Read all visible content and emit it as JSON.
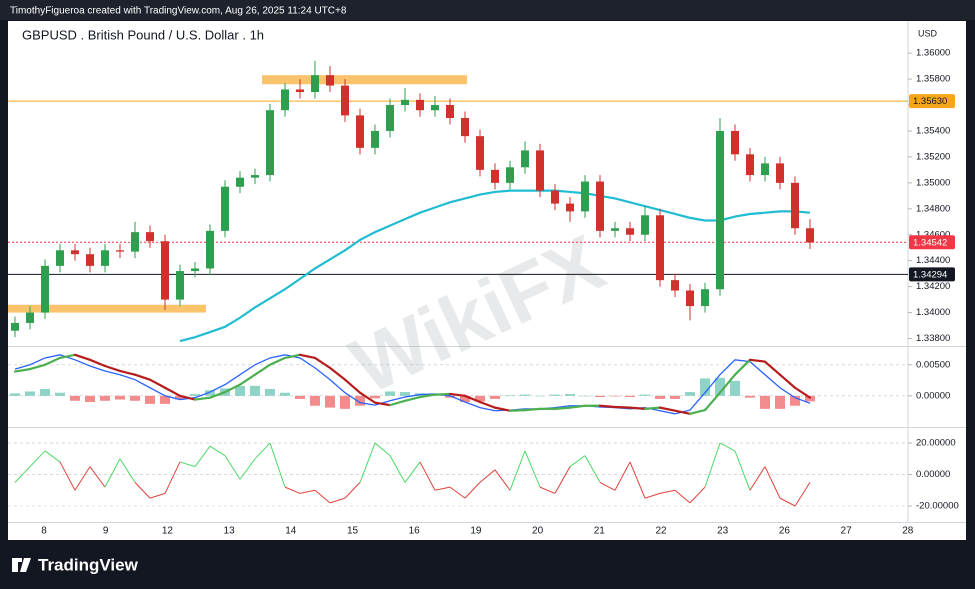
{
  "header": "TimothyFigueroa created with TradingView.com, Aug 26, 2025 11:24 UTC+8",
  "brand": "TradingView",
  "watermark": "WikiFX",
  "chart_data": [
    {
      "type": "candlestick",
      "title": "GBPUSD . British Pound / U.S. Dollar . 1h",
      "currency": "USD",
      "up_color": "#2e9e4f",
      "down_color": "#d0312d",
      "open": [
        1.3386,
        1.3392,
        1.34,
        1.3436,
        1.3448,
        1.3445,
        1.3436,
        1.3448,
        1.3447,
        1.3462,
        1.3455,
        1.341,
        1.3432,
        1.3434,
        1.3463,
        1.3497,
        1.3504,
        1.3506,
        1.3556,
        1.3572,
        1.357,
        1.3583,
        1.3575,
        1.3552,
        1.3527,
        1.354,
        1.356,
        1.3564,
        1.3556,
        1.356,
        1.355,
        1.3536,
        1.351,
        1.35,
        1.3512,
        1.3525,
        1.3494,
        1.3484,
        1.3478,
        1.3501,
        1.3463,
        1.3465,
        1.346,
        1.3475,
        1.3425,
        1.3417,
        1.3405,
        1.3418,
        1.354,
        1.3522,
        1.3506,
        1.3515,
        1.35,
        1.3465
      ],
      "high": [
        1.3397,
        1.3405,
        1.3441,
        1.3453,
        1.3453,
        1.345,
        1.3453,
        1.3453,
        1.347,
        1.3467,
        1.346,
        1.3437,
        1.3439,
        1.3468,
        1.3502,
        1.3509,
        1.3511,
        1.3561,
        1.3577,
        1.358,
        1.3594,
        1.359,
        1.358,
        1.3557,
        1.3545,
        1.3565,
        1.3573,
        1.3569,
        1.3567,
        1.3565,
        1.3555,
        1.3541,
        1.3515,
        1.3517,
        1.3532,
        1.353,
        1.3499,
        1.3489,
        1.3506,
        1.3506,
        1.347,
        1.347,
        1.3482,
        1.348,
        1.343,
        1.3422,
        1.3423,
        1.355,
        1.3545,
        1.3527,
        1.352,
        1.352,
        1.3505,
        1.3472
      ],
      "low": [
        1.3381,
        1.3387,
        1.3395,
        1.3431,
        1.344,
        1.3431,
        1.3431,
        1.3442,
        1.3442,
        1.345,
        1.3402,
        1.3405,
        1.3427,
        1.3429,
        1.3458,
        1.3492,
        1.3499,
        1.3501,
        1.3551,
        1.3565,
        1.3565,
        1.357,
        1.3547,
        1.3522,
        1.3522,
        1.3535,
        1.3555,
        1.3551,
        1.3551,
        1.3545,
        1.3531,
        1.3505,
        1.3495,
        1.3495,
        1.3507,
        1.3489,
        1.3479,
        1.347,
        1.3473,
        1.3458,
        1.3458,
        1.3455,
        1.3455,
        1.342,
        1.3412,
        1.3394,
        1.34,
        1.3413,
        1.3517,
        1.3501,
        1.3501,
        1.3495,
        1.346,
        1.3449
      ],
      "close": [
        1.3392,
        1.34,
        1.3436,
        1.3448,
        1.3445,
        1.3436,
        1.3448,
        1.3447,
        1.3462,
        1.3455,
        1.341,
        1.3432,
        1.3434,
        1.3463,
        1.3497,
        1.3504,
        1.3506,
        1.3556,
        1.3572,
        1.357,
        1.3583,
        1.3575,
        1.3552,
        1.3527,
        1.354,
        1.356,
        1.3564,
        1.3556,
        1.356,
        1.355,
        1.3536,
        1.351,
        1.35,
        1.3512,
        1.3525,
        1.3494,
        1.3484,
        1.3478,
        1.3501,
        1.3463,
        1.3465,
        1.346,
        1.3475,
        1.3425,
        1.3417,
        1.3405,
        1.3418,
        1.354,
        1.3522,
        1.3506,
        1.3515,
        1.35,
        1.3465,
        1.3454
      ],
      "ma": {
        "color": "#1fbcd2",
        "values": [
          null,
          null,
          null,
          null,
          null,
          null,
          null,
          null,
          null,
          null,
          null,
          1.3378,
          1.3381,
          1.3385,
          1.3389,
          1.3396,
          1.3404,
          1.3411,
          1.3418,
          1.3426,
          1.3434,
          1.3441,
          1.3448,
          1.3456,
          1.3462,
          1.3467,
          1.3472,
          1.3477,
          1.3481,
          1.3485,
          1.3488,
          1.3491,
          1.3493,
          1.3494,
          1.3494,
          1.3494,
          1.3494,
          1.3493,
          1.3492,
          1.349,
          1.3488,
          1.3485,
          1.3482,
          1.3479,
          1.3476,
          1.3473,
          1.3471,
          1.3471,
          1.3474,
          1.3476,
          1.3477,
          1.3478,
          1.3478,
          1.3477
        ]
      },
      "zones": [
        {
          "from": 1.3576,
          "to": 1.3583,
          "color": "#fbc36b"
        },
        {
          "from": 1.34,
          "to": 1.3406,
          "color": "#fbc36b"
        }
      ],
      "levels": [
        {
          "value": 1.3563,
          "label": "1.35630",
          "color": "#f7a61c",
          "text_color": "#131722",
          "style": "solid"
        },
        {
          "value": 1.34542,
          "label": "1.34542",
          "color": "#f23645",
          "text_color": "#ffffff",
          "style": "dotted"
        },
        {
          "value": 1.34294,
          "label": "1.34294",
          "color": "#131722",
          "text_color": "#ffffff",
          "style": "solid"
        }
      ],
      "ylim": [
        1.3375,
        1.3624
      ],
      "yticks": [
        {
          "value": 1.338,
          "label": "1.33800"
        },
        {
          "value": 1.34,
          "label": "1.34000"
        },
        {
          "value": 1.342,
          "label": "1.34200"
        },
        {
          "value": 1.344,
          "label": "1.34400"
        },
        {
          "value": 1.346,
          "label": "1.34600"
        },
        {
          "value": 1.348,
          "label": "1.34800"
        },
        {
          "value": 1.35,
          "label": "1.35000"
        },
        {
          "value": 1.352,
          "label": "1.35200"
        },
        {
          "value": 1.354,
          "label": "1.35400"
        },
        {
          "value": 1.356,
          "label": "1.35600"
        },
        {
          "value": 1.358,
          "label": "1.35800"
        },
        {
          "value": 1.36,
          "label": "1.36000"
        }
      ],
      "day_labels": [
        "8",
        "9",
        "12",
        "13",
        "14",
        "15",
        "16",
        "19",
        "20",
        "21",
        "22",
        "23",
        "26",
        "27",
        "28"
      ]
    },
    {
      "type": "macd",
      "ylim": [
        -0.0047,
        0.0077
      ],
      "yticks": [
        {
          "value": 0,
          "label": "0.00000"
        },
        {
          "value": 0.005,
          "label": "0.00500"
        }
      ],
      "hist": {
        "pos_color": "#8fd3c7",
        "neg_color": "#f28b8b",
        "values": [
          0.0004,
          0.0007,
          0.0011,
          0.0005,
          -0.0008,
          -0.001,
          -0.0008,
          -0.0006,
          -0.0008,
          -0.0013,
          -0.0013,
          -0.0006,
          0.0003,
          0.0009,
          0.0012,
          0.0016,
          0.0016,
          0.0011,
          0.0005,
          -0.0005,
          -0.0016,
          -0.0019,
          -0.0021,
          -0.0016,
          -0.0004,
          0.0007,
          0.0006,
          0.0004,
          0.0001,
          -0.0003,
          -0.001,
          -0.0009,
          -0.0005,
          0.0001,
          0.0002,
          0,
          0.0002,
          0.0003,
          0,
          -0.0002,
          -0.0001,
          -0.0002,
          0.0002,
          -0.0005,
          -0.0005,
          0.0006,
          0.0028,
          0.0029,
          0.0024,
          -0.0003,
          -0.0021,
          -0.0021,
          -0.0016,
          -0.0009
        ]
      },
      "macd": {
        "color": "#2962ff",
        "values": [
          0.0043,
          0.005,
          0.0061,
          0.0066,
          0.0058,
          0.0048,
          0.004,
          0.0034,
          0.0026,
          0.0013,
          0,
          -0.0006,
          -0.0003,
          0.0006,
          0.0018,
          0.0034,
          0.005,
          0.0061,
          0.0066,
          0.0061,
          0.0045,
          0.0026,
          0.0005,
          -0.0011,
          -0.0015,
          -0.0008,
          -0.0002,
          0.0002,
          0.0003,
          0,
          -0.001,
          -0.0019,
          -0.0024,
          -0.0023,
          -0.0021,
          -0.0021,
          -0.0019,
          -0.0016,
          -0.0016,
          -0.0018,
          -0.0019,
          -0.0021,
          -0.0019,
          -0.0024,
          -0.0029,
          -0.0023,
          0.0005,
          0.0034,
          0.0058,
          0.0055,
          0.0034,
          0.0013,
          -0.0003,
          -0.0012
        ]
      },
      "signal": {
        "up_color": "#4caf50",
        "down_color": "#b71c1c",
        "values": [
          0.0039,
          0.0043,
          0.005,
          0.0061,
          0.0066,
          0.0058,
          0.0048,
          0.004,
          0.0034,
          0.0026,
          0.0013,
          0,
          -0.0006,
          -0.0003,
          0.0006,
          0.0018,
          0.0034,
          0.005,
          0.0061,
          0.0066,
          0.0061,
          0.0045,
          0.0026,
          0.0005,
          -0.0011,
          -0.0015,
          -0.0008,
          -0.0002,
          0.0002,
          0.0003,
          0,
          -0.001,
          -0.0019,
          -0.0024,
          -0.0023,
          -0.0021,
          -0.0021,
          -0.0019,
          -0.0016,
          -0.0016,
          -0.0018,
          -0.0019,
          -0.0021,
          -0.0019,
          -0.0024,
          -0.0029,
          -0.0023,
          0.0005,
          0.0034,
          0.0058,
          0.0055,
          0.0034,
          0.0013,
          -0.0003
        ]
      }
    },
    {
      "type": "oscillator",
      "ylim": [
        -28.9,
        28.3
      ],
      "yticks": [
        {
          "value": 20,
          "label": "20.00000"
        },
        {
          "value": 0,
          "label": "0.00000"
        },
        {
          "value": -20,
          "label": "-20.00000"
        }
      ],
      "pos_color": "#4cd964",
      "neg_color": "#e0413b",
      "values": [
        -5,
        5,
        15,
        8,
        -10,
        5,
        -8,
        10,
        -5,
        -15,
        -12,
        8,
        5,
        18,
        12,
        -3,
        10,
        20,
        -8,
        -12,
        -10,
        -18,
        -15,
        -5,
        20,
        12,
        -5,
        8,
        -10,
        -8,
        -15,
        -5,
        3,
        -10,
        15,
        -8,
        -12,
        5,
        12,
        -5,
        -10,
        8,
        -15,
        -12,
        -10,
        -18,
        -8,
        20,
        15,
        -10,
        5,
        -15,
        -20,
        -5
      ]
    }
  ]
}
